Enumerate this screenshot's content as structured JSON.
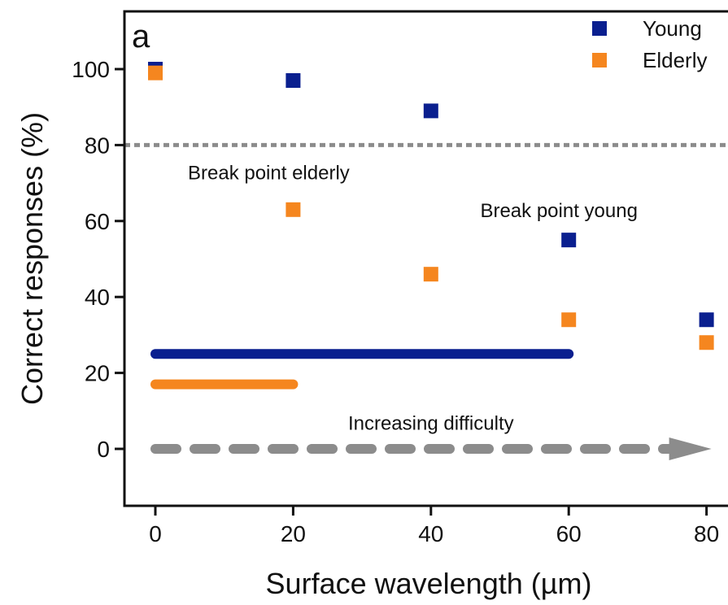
{
  "chart_data": {
    "type": "scatter",
    "panel_label": "a",
    "xlabel": "Surface wavelength (µm)",
    "ylabel": "Correct responses (%)",
    "xlim": [
      -8,
      88
    ],
    "ylim": [
      -15,
      114
    ],
    "x_ticks": [
      0,
      20,
      40,
      60,
      80
    ],
    "y_ticks": [
      0,
      20,
      40,
      60,
      80,
      100
    ],
    "x_tick_labels": [
      "0",
      "20",
      "40",
      "60",
      "80"
    ],
    "y_tick_labels": [
      "0",
      "20",
      "40",
      "60",
      "80",
      "100"
    ],
    "grid": false,
    "legend_position": "top-right",
    "series": [
      {
        "name": "Young",
        "color": "#0a1f8f",
        "x": [
          0,
          20,
          40,
          60,
          80
        ],
        "y": [
          100,
          97,
          89,
          55,
          34
        ]
      },
      {
        "name": "Elderly",
        "color": "#f5861f",
        "x": [
          0,
          20,
          40,
          60,
          80
        ],
        "y": [
          99,
          63,
          46,
          34,
          28
        ]
      }
    ],
    "reference_line": {
      "y": 80,
      "color": "#8c8c8c"
    },
    "ranges": [
      {
        "series": "Young",
        "x_start": 0,
        "x_end": 60,
        "y": 25,
        "color": "#0a1f8f"
      },
      {
        "series": "Elderly",
        "x_start": 0,
        "x_end": 20,
        "y": 17,
        "color": "#f5861f"
      }
    ],
    "difficulty_arrow": {
      "x_start": 0,
      "x_end": 80,
      "y": 0,
      "color": "#8c8c8c"
    },
    "annotations": {
      "break_elderly": {
        "text": "Break point elderly",
        "x": 20,
        "y": 71
      },
      "break_young": {
        "text": "Break point young",
        "x": 60,
        "y": 61
      },
      "difficulty": {
        "text": "Increasing difficulty",
        "x": 40,
        "y": 5
      }
    }
  }
}
